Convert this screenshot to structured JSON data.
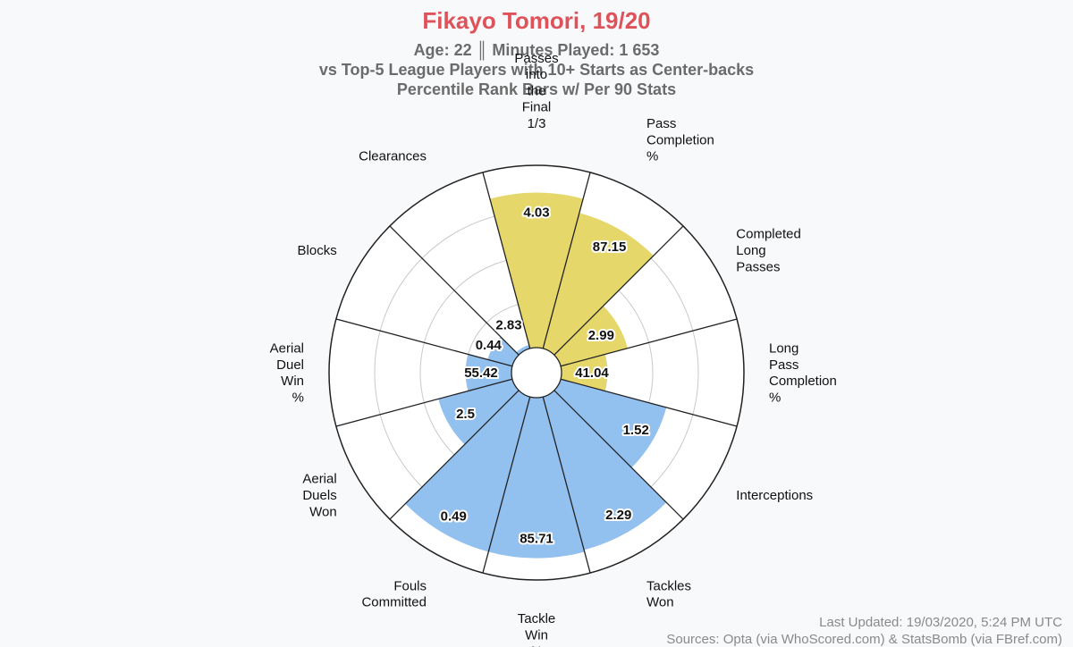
{
  "header": {
    "title": "Fikayo Tomori, 19/20",
    "subtitle_lines": [
      "Age: 22 ║ Minutes Played: 1 653",
      "vs Top-5 League Players with 10+ Starts as Center-backs",
      "Percentile Rank Bars w/ Per 90 Stats"
    ]
  },
  "footer": {
    "updated": "Last Updated: 19/03/2020, 5:24 PM UTC",
    "sources": "Sources: Opta (via WhoScored.com) & StatsBomb (via FBref.com)"
  },
  "colors": {
    "passing": "#e5d76a",
    "defending": "#92c0ef",
    "title": "#e0525a",
    "subtitle": "#6b6b6b"
  },
  "chart_data": {
    "type": "bar",
    "projection": "polar",
    "description_units": "percentile rank 0-100 (bar length) with per-90 stat labels",
    "rlim": [
      0,
      100
    ],
    "categories": [
      {
        "label": [
          "Passes",
          "into",
          "the",
          "Final",
          "1/3"
        ],
        "stat": "4.03",
        "percentile": 85,
        "group": "passing"
      },
      {
        "label": [
          "Pass",
          "Completion",
          "%"
        ],
        "stat": "87.15",
        "percentile": 77,
        "group": "passing"
      },
      {
        "label": [
          "Completed",
          "Long",
          "Passes"
        ],
        "stat": "2.99",
        "percentile": 38,
        "group": "passing"
      },
      {
        "label": [
          "Long",
          "Pass",
          "Completion",
          "%"
        ],
        "stat": "41.04",
        "percentile": 25,
        "group": "passing"
      },
      {
        "label": [
          "Interceptions"
        ],
        "stat": "1.52",
        "percentile": 60,
        "group": "defending"
      },
      {
        "label": [
          "Tackles",
          "Won"
        ],
        "stat": "2.29",
        "percentile": 87,
        "group": "defending"
      },
      {
        "label": [
          "Tackle",
          "Win",
          "%"
        ],
        "stat": "85.71",
        "percentile": 88,
        "group": "defending"
      },
      {
        "label": [
          "Fouls",
          "Committed"
        ],
        "stat": "0.49",
        "percentile": 88,
        "group": "defending"
      },
      {
        "label": [
          "Aerial",
          "Duels",
          "Won"
        ],
        "stat": "2.5",
        "percentile": 42,
        "group": "defending"
      },
      {
        "label": [
          "Aerial",
          "Duel",
          "Win",
          "%"
        ],
        "stat": "55.42",
        "percentile": 25,
        "group": "defending"
      },
      {
        "label": [
          "Blocks"
        ],
        "stat": "0.44",
        "percentile": 14,
        "group": "defending"
      },
      {
        "label": [
          "Clearances"
        ],
        "stat": "2.83",
        "percentile": 2,
        "group": "defending"
      }
    ]
  }
}
